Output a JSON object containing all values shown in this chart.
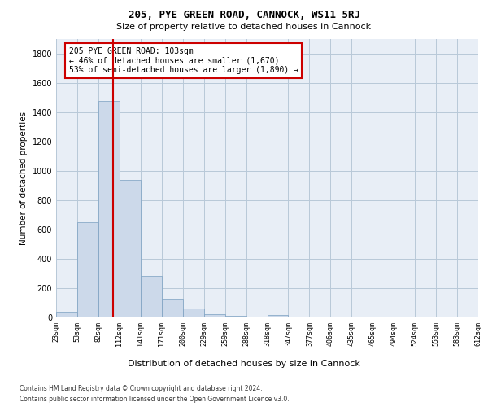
{
  "title": "205, PYE GREEN ROAD, CANNOCK, WS11 5RJ",
  "subtitle": "Size of property relative to detached houses in Cannock",
  "xlabel": "Distribution of detached houses by size in Cannock",
  "ylabel": "Number of detached properties",
  "footer_line1": "Contains HM Land Registry data © Crown copyright and database right 2024.",
  "footer_line2": "Contains public sector information licensed under the Open Government Licence v3.0.",
  "bar_color": "#ccd9ea",
  "bar_edge_color": "#7a9fc0",
  "grid_color": "#b8c8d8",
  "background_color": "#e8eef6",
  "annotation_text": "205 PYE GREEN ROAD: 103sqm\n← 46% of detached houses are smaller (1,670)\n53% of semi-detached houses are larger (1,890) →",
  "vline_color": "#cc0000",
  "vline_x_index": 2.37,
  "ylim": [
    0,
    1900
  ],
  "n_bins": 20,
  "bar_heights": [
    40,
    648,
    1474,
    938,
    283,
    128,
    62,
    22,
    12,
    0,
    14,
    0,
    0,
    0,
    0,
    0,
    0,
    0,
    0,
    0
  ],
  "tick_labels": [
    "23sqm",
    "53sqm",
    "82sqm",
    "112sqm",
    "141sqm",
    "171sqm",
    "200sqm",
    "229sqm",
    "259sqm",
    "288sqm",
    "318sqm",
    "347sqm",
    "377sqm",
    "406sqm",
    "435sqm",
    "465sqm",
    "494sqm",
    "524sqm",
    "553sqm",
    "583sqm",
    "612sqm"
  ],
  "yticks": [
    0,
    200,
    400,
    600,
    800,
    1000,
    1200,
    1400,
    1600,
    1800
  ],
  "title_fontsize": 9,
  "subtitle_fontsize": 8,
  "ylabel_fontsize": 7.5,
  "xlabel_fontsize": 8,
  "tick_fontsize": 6,
  "ytick_fontsize": 7,
  "footer_fontsize": 5.5,
  "annot_fontsize": 7
}
